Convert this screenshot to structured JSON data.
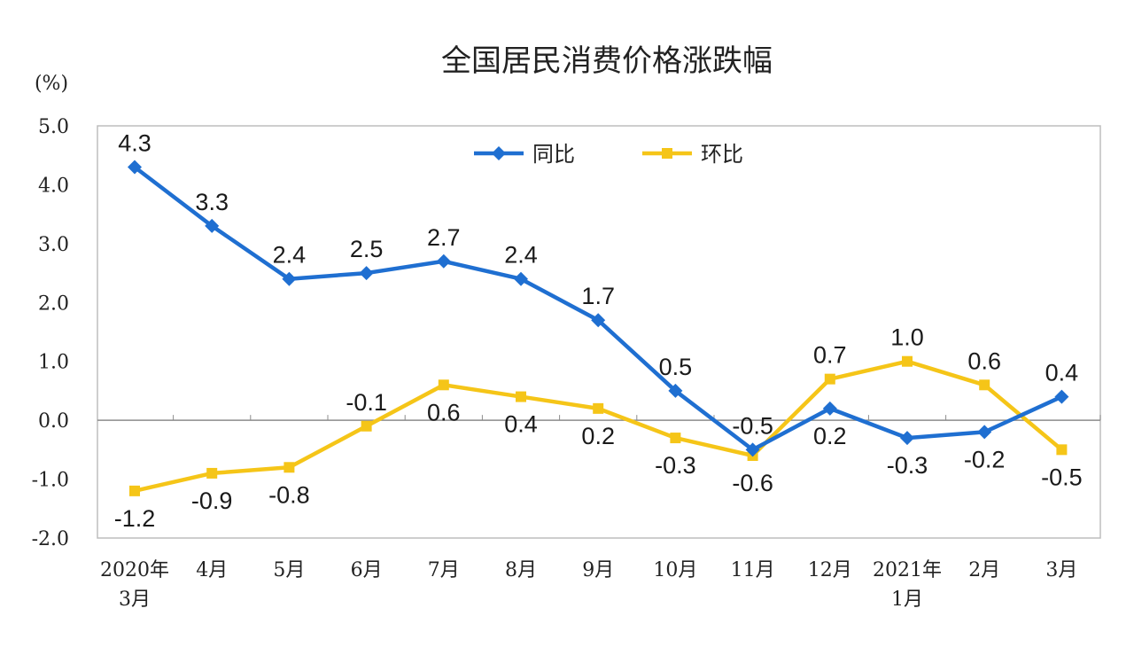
{
  "chart_data": {
    "type": "line",
    "title": "全国居民消费价格涨跌幅",
    "unit_label": "(%)",
    "ylim": [
      -2.0,
      5.0
    ],
    "yticks": [
      "5.0",
      "4.0",
      "3.0",
      "2.0",
      "1.0",
      "0.0",
      "-1.0",
      "-2.0"
    ],
    "ytick_values": [
      5,
      4,
      3,
      2,
      1,
      0,
      -1,
      -2
    ],
    "categories": [
      [
        "2020年",
        "3月"
      ],
      [
        "4月"
      ],
      [
        "5月"
      ],
      [
        "6月"
      ],
      [
        "7月"
      ],
      [
        "8月"
      ],
      [
        "9月"
      ],
      [
        "10月"
      ],
      [
        "11月"
      ],
      [
        "12月"
      ],
      [
        "2021年",
        "1月"
      ],
      [
        "2月"
      ],
      [
        "3月"
      ]
    ],
    "series": [
      {
        "name": "同比",
        "color": "#1f6fd1",
        "marker": "diamond",
        "values": [
          4.3,
          3.3,
          2.4,
          2.5,
          2.7,
          2.4,
          1.7,
          0.5,
          -0.5,
          0.2,
          -0.3,
          -0.2,
          0.4
        ],
        "labels": [
          "4.3",
          "3.3",
          "2.4",
          "2.5",
          "2.7",
          "2.4",
          "1.7",
          "0.5",
          "-0.5",
          "0.2",
          "-0.3",
          "-0.2",
          "0.4"
        ],
        "label_pos": [
          "above",
          "above",
          "above",
          "above",
          "above",
          "above",
          "above",
          "above",
          "above",
          "below",
          "below",
          "below",
          "above"
        ]
      },
      {
        "name": "环比",
        "color": "#f5c518",
        "marker": "square",
        "values": [
          -1.2,
          -0.9,
          -0.8,
          -0.1,
          0.6,
          0.4,
          0.2,
          -0.3,
          -0.6,
          0.7,
          1.0,
          0.6,
          -0.5
        ],
        "labels": [
          "-1.2",
          "-0.9",
          "-0.8",
          "-0.1",
          "0.6",
          "0.4",
          "0.2",
          "-0.3",
          "-0.6",
          "0.7",
          "1.0",
          "0.6",
          "-0.5"
        ],
        "label_pos": [
          "below",
          "below",
          "below",
          "above",
          "below",
          "below",
          "below",
          "below",
          "below",
          "above",
          "above",
          "above",
          "below"
        ]
      }
    ],
    "legend_position": "top-center",
    "grid": false
  }
}
